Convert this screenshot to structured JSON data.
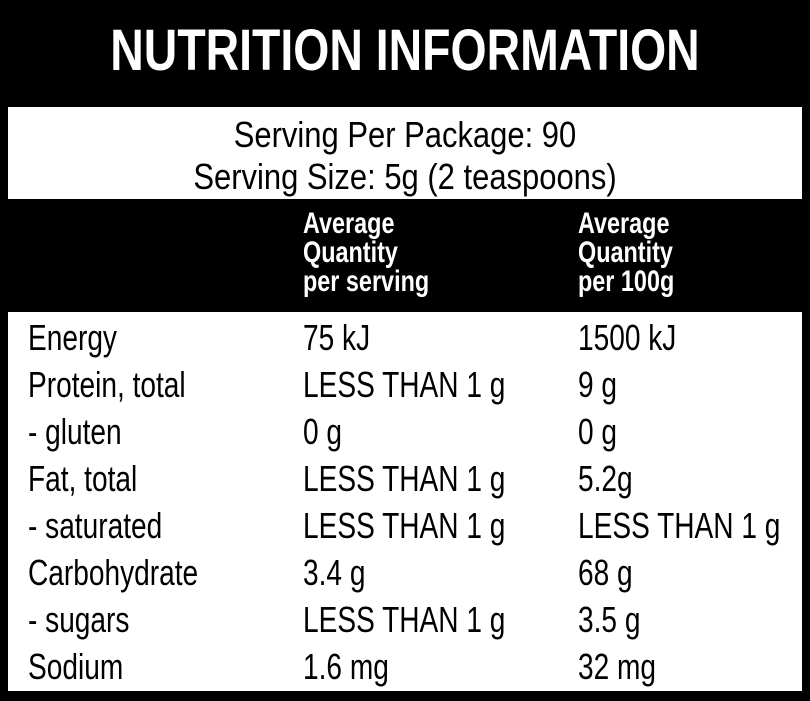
{
  "title": "NUTRITION INFORMATION",
  "serving": [
    "Serving Per Package: 90",
    "Serving Size: 5g (2 teaspoons)"
  ],
  "table": {
    "headers": [
      [
        "Average",
        "Quantity",
        "per serving"
      ],
      [
        "Average",
        "Quantity",
        "per 100g"
      ]
    ],
    "rows": [
      [
        "Energy",
        "75 kJ",
        "1500 kJ"
      ],
      [
        "Protein, total",
        "LESS THAN 1 g",
        "9 g"
      ],
      [
        "- gluten",
        "0 g",
        "0 g"
      ],
      [
        "Fat, total",
        "LESS THAN 1 g",
        "5.2g"
      ],
      [
        "- saturated",
        "LESS THAN 1 g",
        "LESS THAN 1 g"
      ],
      [
        "Carbohydrate",
        "3.4 g",
        "68 g"
      ],
      [
        "- sugars",
        "LESS THAN 1 g",
        "3.5 g"
      ],
      [
        "Sodium",
        "1.6 mg",
        "32 mg"
      ]
    ]
  }
}
